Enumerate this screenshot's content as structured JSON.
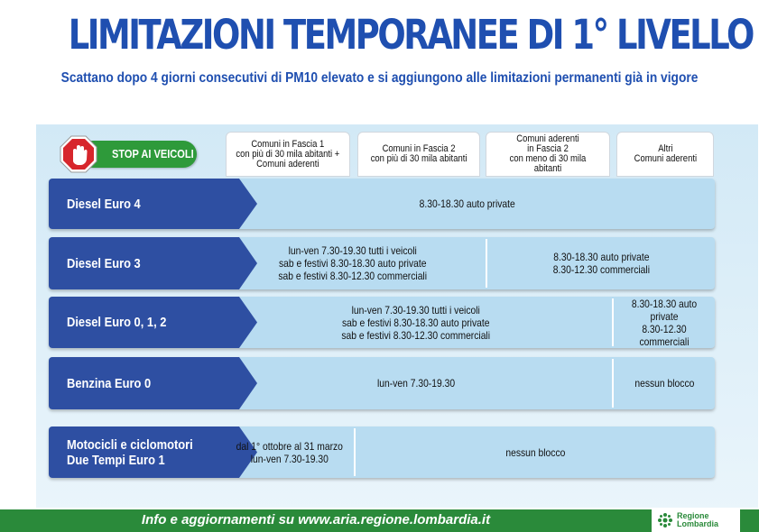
{
  "title": "LIMITAZIONI TEMPORANEE DI 1° LIVELLO",
  "subtitle": "Scattano dopo 4 giorni consecutivi di PM10 elevato e si aggiungono alle limitazioni permanenti già in vigore",
  "stop_label": "STOP AI VEICOLI",
  "columns": [
    "Comuni in Fascia 1\ncon più di 30 mila abitanti +\nComuni aderenti",
    "Comuni in Fascia 2\ncon più di 30 mila abitanti",
    "Comuni aderenti\nin Fascia 2\ncon meno di 30 mila abitanti",
    "Altri\nComuni aderenti"
  ],
  "rows": [
    {
      "label": "Diesel Euro 4",
      "cells": [
        "8.30-18.30 auto private"
      ]
    },
    {
      "label": "Diesel Euro 3",
      "cells": [
        "lun-ven 7.30-19.30 tutti i veicoli\nsab e festivi 8.30-18.30 auto private\nsab e festivi 8.30-12.30 commerciali",
        "8.30-18.30 auto private\n8.30-12.30 commerciali"
      ]
    },
    {
      "label": "Diesel Euro 0, 1, 2",
      "cells": [
        "lun-ven 7.30-19.30 tutti i veicoli\nsab e festivi 8.30-18.30 auto private\nsab e festivi 8.30-12.30 commerciali",
        "8.30-18.30 auto private\n8.30-12.30 commerciali"
      ]
    },
    {
      "label": "Benzina Euro 0",
      "cells": [
        "lun-ven 7.30-19.30",
        "nessun blocco"
      ]
    },
    {
      "label": "Motocicli e ciclomotori\nDue Tempi Euro 1",
      "cells": [
        "dal 1° ottobre al 31 marzo\nlun-ven 7.30-19.30",
        "nessun blocco"
      ]
    }
  ],
  "footer": {
    "text": "Info e aggiornamenti su www.aria.regione.lombardia.it",
    "logo_text": "Regione\nLombardia",
    "logo_icon": "rosa-camuna-icon"
  },
  "colors": {
    "title": "#1f4fb0",
    "tab": "#2e4fa2",
    "cell": "#b8dcf1",
    "footer": "#2a8a3a",
    "stop": "#2e9a3a",
    "stop_sign": "#d7262c"
  }
}
